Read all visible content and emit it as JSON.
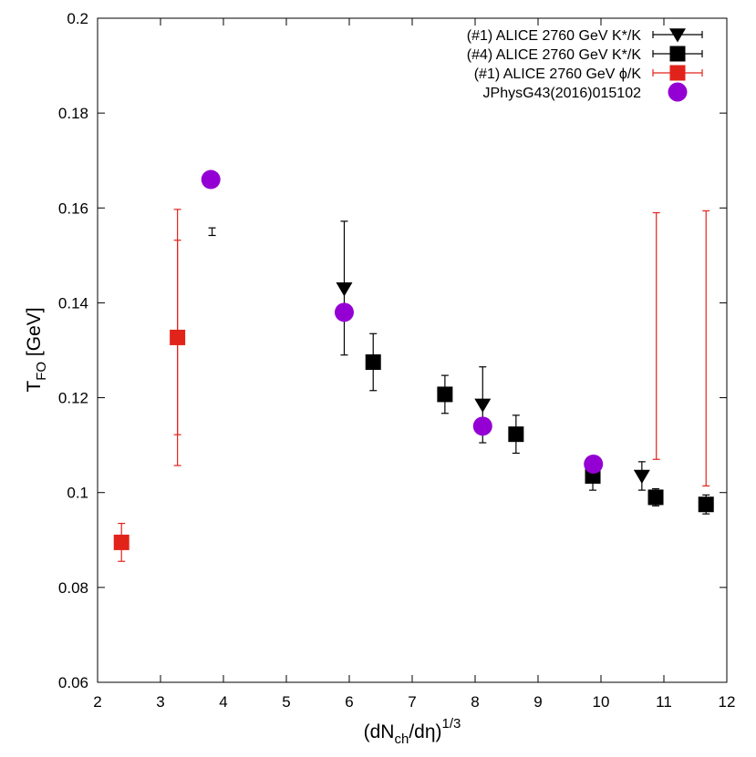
{
  "chart_data": {
    "type": "scatter",
    "title": "",
    "xlabel": {
      "main": "(dN",
      "sub": "ch",
      "mid": "/dη)",
      "sup": "1/3"
    },
    "ylabel": {
      "main": "T",
      "sub": "FO",
      "rest": " [GeV]"
    },
    "xlim": [
      2,
      12
    ],
    "ylim": [
      0.06,
      0.2
    ],
    "xticks": [
      2,
      3,
      4,
      5,
      6,
      7,
      8,
      9,
      10,
      11,
      12
    ],
    "xtick_labels": [
      "2",
      "3",
      "4",
      "5",
      "6",
      "7",
      "8",
      "9",
      "10",
      "11",
      "12"
    ],
    "yticks": [
      0.06,
      0.08,
      0.1,
      0.12,
      0.14,
      0.16,
      0.18,
      0.2
    ],
    "ytick_labels": [
      "0.06",
      "0.08",
      "0.1",
      "0.12",
      "0.14",
      "0.16",
      "0.18",
      "0.2"
    ],
    "grid": false,
    "legend_position": "top-right",
    "series": [
      {
        "name": "(#1) ALICE 2760 GeV K*/K",
        "marker": "triangle-down",
        "color": "#000000",
        "points": [
          {
            "x": 3.82,
            "y": 0.155,
            "err_low": 0.0008,
            "err_high": 0.0008,
            "marker": false
          },
          {
            "x": 5.92,
            "y": 0.143,
            "err_low": 0.014,
            "err_high": 0.0142
          },
          {
            "x": 8.12,
            "y": 0.1185,
            "err_low": 0.008,
            "err_high": 0.008
          },
          {
            "x": 10.65,
            "y": 0.1035,
            "err_low": 0.003,
            "err_high": 0.003
          }
        ]
      },
      {
        "name": "(#4) ALICE 2760 GeV K*/K",
        "marker": "square",
        "color": "#000000",
        "points": [
          {
            "x": 6.38,
            "y": 0.1275,
            "err_low": 0.006,
            "err_high": 0.006
          },
          {
            "x": 7.52,
            "y": 0.1207,
            "err_low": 0.004,
            "err_high": 0.004
          },
          {
            "x": 8.65,
            "y": 0.1123,
            "err_low": 0.004,
            "err_high": 0.004
          },
          {
            "x": 9.87,
            "y": 0.1035,
            "err_low": 0.003,
            "err_high": 0.003
          },
          {
            "x": 10.87,
            "y": 0.099,
            "err_low": 0.0018,
            "err_high": 0.0018
          },
          {
            "x": 11.67,
            "y": 0.0975,
            "err_low": 0.002,
            "err_high": 0.002
          }
        ]
      },
      {
        "name": "(#1) ALICE 2760 GeV ϕ/K",
        "marker": "square",
        "color": "#e2231a",
        "points": [
          {
            "x": 2.38,
            "y": 0.0895,
            "err_low": 0.004,
            "err_high": 0.004
          },
          {
            "x": 3.27,
            "y": 0.1327,
            "err_low": 0.027,
            "err_high": 0.027
          },
          {
            "x": 3.27,
            "y": 0.1327,
            "err_low": 0.0205,
            "err_high": 0.0205,
            "marker": false
          },
          {
            "x": 10.88,
            "y": 0.133,
            "err_low": 0.026,
            "err_high": 0.026,
            "marker": false
          },
          {
            "x": 11.67,
            "y": 0.1304,
            "err_low": 0.029,
            "err_high": 0.029,
            "marker": false
          }
        ]
      },
      {
        "name": "JPhysG43(2016)015102",
        "marker": "circle",
        "color": "#9400d3",
        "points": [
          {
            "x": 3.8,
            "y": 0.166
          },
          {
            "x": 5.92,
            "y": 0.138
          },
          {
            "x": 8.12,
            "y": 0.114
          },
          {
            "x": 9.88,
            "y": 0.106
          }
        ]
      }
    ]
  }
}
